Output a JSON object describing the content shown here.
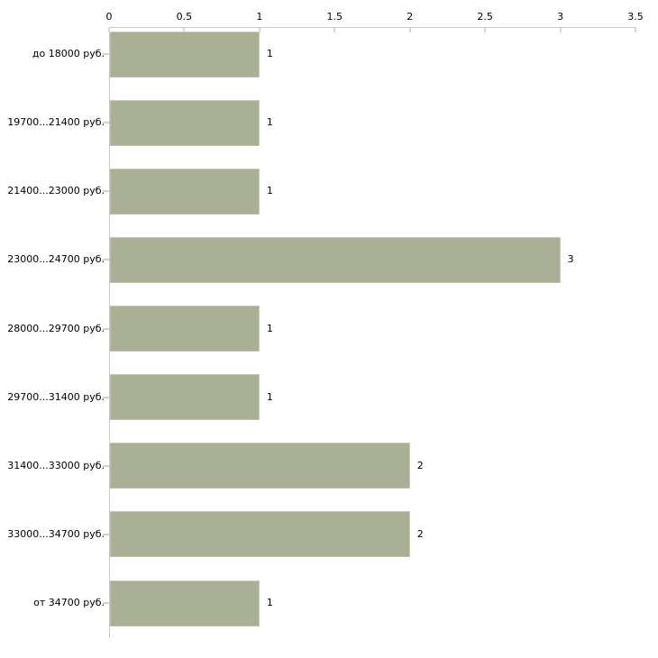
{
  "chart_data": {
    "type": "bar",
    "orientation": "horizontal",
    "title": "",
    "xlabel": "",
    "ylabel": "",
    "categories": [
      "до 18000 руб.",
      "19700...21400 руб.",
      "21400...23000 руб.",
      "23000...24700 руб.",
      "28000...29700 руб.",
      "29700...31400 руб.",
      "31400...33000 руб.",
      "33000...34700 руб.",
      "от 34700 руб."
    ],
    "values": [
      1,
      1,
      1,
      3,
      1,
      1,
      2,
      2,
      1
    ],
    "x_ticks": [
      {
        "label": "0",
        "value": 0
      },
      {
        "label": "0.5",
        "value": 0.5
      },
      {
        "label": "1",
        "value": 1
      },
      {
        "label": "1.5",
        "value": 1.5
      },
      {
        "label": "2",
        "value": 2
      },
      {
        "label": "2.5",
        "value": 2.5
      },
      {
        "label": "3",
        "value": 3
      },
      {
        "label": "3.5",
        "value": 3.5
      }
    ],
    "xlim": [
      0,
      3.5
    ],
    "grid": false,
    "legend": false,
    "x_axis_position": "top",
    "bar_color": "#a9b096",
    "axis_line_color": "#c9c9c9",
    "tick_mark_color": "#d9d9c5",
    "text_color": "#000000",
    "background_color": "#ffffff"
  }
}
